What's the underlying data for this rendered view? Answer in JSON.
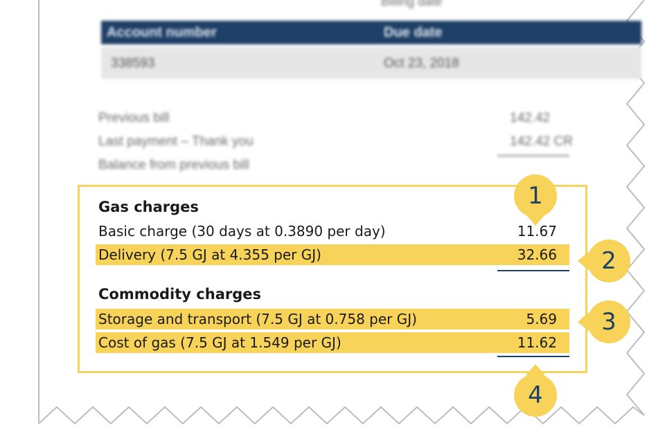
{
  "top_partial": "Billing date",
  "header": {
    "account_label": "Account number",
    "due_label": "Due date"
  },
  "info": {
    "account_value": "338593",
    "due_value": "Oct 23, 2018"
  },
  "previous": [
    {
      "label": "Previous bill",
      "value": "142.42"
    },
    {
      "label": "Last payment – Thank you",
      "value": "142.42 CR"
    },
    {
      "label": "Balance from previous bill",
      "value": ""
    }
  ],
  "gas": {
    "title": "Gas charges",
    "rows": [
      {
        "label": "Basic charge (30 days at 0.3890 per day)",
        "value": "11.67"
      },
      {
        "label": "Delivery (7.5 GJ at 4.355 per GJ)",
        "value": "32.66"
      }
    ]
  },
  "commodity": {
    "title": "Commodity charges",
    "rows": [
      {
        "label": "Storage and transport (7.5 GJ at 0.758 per GJ)",
        "value": "5.69"
      },
      {
        "label": "Cost of gas (7.5 GJ at 1.549 per GJ)",
        "value": "11.62"
      }
    ]
  },
  "callouts": [
    "1",
    "2",
    "3",
    "4"
  ],
  "colors": {
    "highlight": "#f7d35a",
    "navy": "#1e3f66"
  }
}
